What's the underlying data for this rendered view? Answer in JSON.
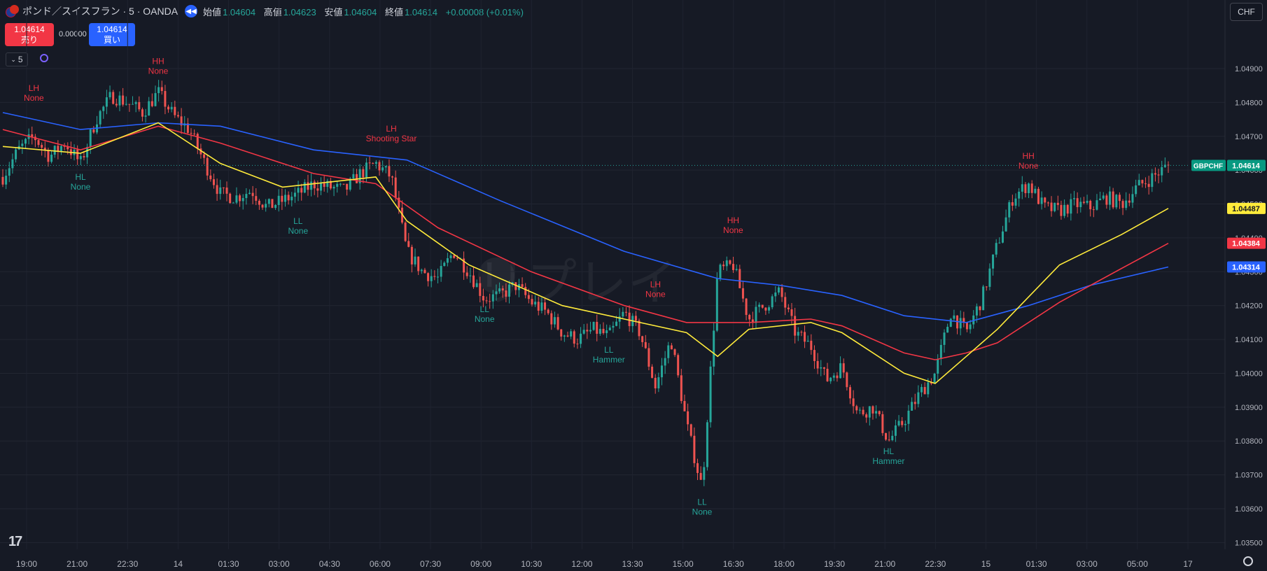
{
  "header": {
    "symbol_title": "ポンド／スイスフラン · 5 · OANDA",
    "open_label": "始値",
    "open": "1.04604",
    "high_label": "高値",
    "high": "1.04623",
    "low_label": "安値",
    "low": "1.04604",
    "close_label": "終値",
    "close": "1.04614",
    "change": "+0.00008 (+0.01%)"
  },
  "trade": {
    "sell_price": "1.04614",
    "sell_label": "売り",
    "spread": "0.00000",
    "buy_price": "1.04614",
    "buy_label": "買い"
  },
  "interval": "5",
  "currency": "CHF",
  "watermark": "リプレイ",
  "icons": [
    "gbp-chf-flag-icon",
    "replay-icon",
    "chevron-down-icon",
    "sync-icon",
    "tradingview-logo",
    "settings-icon"
  ],
  "colors": {
    "up": "#26a69a",
    "down": "#ef5350",
    "ema_yellow": "#ffeb3b",
    "ema_red": "#f23645",
    "ema_blue": "#2962ff",
    "bg": "#161a25"
  },
  "chart_data": {
    "type": "candlestick",
    "symbol_label": "GBPCHF",
    "y_ticks": [
      "1.04900",
      "1.04800",
      "1.04700",
      "1.04600",
      "1.04500",
      "1.04400",
      "1.04300",
      "1.04200",
      "1.04100",
      "1.04000",
      "1.03900",
      "1.03800",
      "1.03700",
      "1.03600",
      "1.03500"
    ],
    "ylim": [
      1.0348,
      1.0502
    ],
    "x_ticks": [
      "19:00",
      "21:00",
      "22:30",
      "14",
      "01:30",
      "03:00",
      "04:30",
      "06:00",
      "07:30",
      "09:00",
      "10:30",
      "12:00",
      "13:30",
      "15:00",
      "16:30",
      "18:00",
      "19:30",
      "21:00",
      "22:30",
      "15",
      "01:30",
      "03:00",
      "05:00",
      "17"
    ],
    "price_series": [
      {
        "t": 0,
        "p": 1.0458
      },
      {
        "t": 1,
        "p": 1.0466
      },
      {
        "t": 2,
        "p": 1.047
      },
      {
        "t": 3,
        "p": 1.0464
      },
      {
        "t": 4,
        "p": 1.0468
      },
      {
        "t": 5,
        "p": 1.0462
      },
      {
        "t": 6,
        "p": 1.0475
      },
      {
        "t": 7,
        "p": 1.0482
      },
      {
        "t": 8,
        "p": 1.048
      },
      {
        "t": 9,
        "p": 1.0477
      },
      {
        "t": 10,
        "p": 1.0483
      },
      {
        "t": 11,
        "p": 1.0476
      },
      {
        "t": 12,
        "p": 1.0472
      },
      {
        "t": 13,
        "p": 1.0462
      },
      {
        "t": 14,
        "p": 1.0453
      },
      {
        "t": 15,
        "p": 1.0452
      },
      {
        "t": 16,
        "p": 1.0454
      },
      {
        "t": 17,
        "p": 1.0449
      },
      {
        "t": 18,
        "p": 1.0451
      },
      {
        "t": 19,
        "p": 1.0453
      },
      {
        "t": 20,
        "p": 1.0456
      },
      {
        "t": 21,
        "p": 1.0455
      },
      {
        "t": 22,
        "p": 1.0454
      },
      {
        "t": 23,
        "p": 1.0459
      },
      {
        "t": 24,
        "p": 1.0462
      },
      {
        "t": 25,
        "p": 1.0458
      },
      {
        "t": 26,
        "p": 1.0436
      },
      {
        "t": 27,
        "p": 1.043
      },
      {
        "t": 28,
        "p": 1.0428
      },
      {
        "t": 29,
        "p": 1.0436
      },
      {
        "t": 30,
        "p": 1.043
      },
      {
        "t": 31,
        "p": 1.0422
      },
      {
        "t": 32,
        "p": 1.0423
      },
      {
        "t": 33,
        "p": 1.0426
      },
      {
        "t": 34,
        "p": 1.0421
      },
      {
        "t": 35,
        "p": 1.0418
      },
      {
        "t": 36,
        "p": 1.0412
      },
      {
        "t": 37,
        "p": 1.041
      },
      {
        "t": 38,
        "p": 1.0413
      },
      {
        "t": 39,
        "p": 1.0411
      },
      {
        "t": 40,
        "p": 1.0418
      },
      {
        "t": 41,
        "p": 1.0412
      },
      {
        "t": 42,
        "p": 1.0396
      },
      {
        "t": 43,
        "p": 1.041
      },
      {
        "t": 44,
        "p": 1.0385
      },
      {
        "t": 45,
        "p": 1.0366
      },
      {
        "t": 46,
        "p": 1.043
      },
      {
        "t": 47,
        "p": 1.0432
      },
      {
        "t": 48,
        "p": 1.0416
      },
      {
        "t": 49,
        "p": 1.042
      },
      {
        "t": 50,
        "p": 1.0424
      },
      {
        "t": 51,
        "p": 1.0412
      },
      {
        "t": 52,
        "p": 1.0408
      },
      {
        "t": 53,
        "p": 1.0398
      },
      {
        "t": 54,
        "p": 1.0402
      },
      {
        "t": 55,
        "p": 1.0388
      },
      {
        "t": 56,
        "p": 1.039
      },
      {
        "t": 57,
        "p": 1.038
      },
      {
        "t": 58,
        "p": 1.0386
      },
      {
        "t": 59,
        "p": 1.0394
      },
      {
        "t": 60,
        "p": 1.04
      },
      {
        "t": 61,
        "p": 1.0418
      },
      {
        "t": 62,
        "p": 1.0412
      },
      {
        "t": 63,
        "p": 1.0422
      },
      {
        "t": 64,
        "p": 1.0438
      },
      {
        "t": 65,
        "p": 1.0452
      },
      {
        "t": 66,
        "p": 1.0456
      },
      {
        "t": 67,
        "p": 1.0449
      },
      {
        "t": 68,
        "p": 1.0448
      },
      {
        "t": 69,
        "p": 1.045
      },
      {
        "t": 70,
        "p": 1.0449
      },
      {
        "t": 71,
        "p": 1.0452
      },
      {
        "t": 72,
        "p": 1.045
      },
      {
        "t": 73,
        "p": 1.0455
      },
      {
        "t": 74,
        "p": 1.0458
      },
      {
        "t": 75,
        "p": 1.04614
      }
    ],
    "ema_yellow": [
      [
        0,
        1.0467
      ],
      [
        5,
        1.0465
      ],
      [
        10,
        1.0474
      ],
      [
        14,
        1.0462
      ],
      [
        18,
        1.0455
      ],
      [
        24,
        1.0458
      ],
      [
        26,
        1.0445
      ],
      [
        30,
        1.0432
      ],
      [
        36,
        1.042
      ],
      [
        40,
        1.0416
      ],
      [
        44,
        1.0412
      ],
      [
        46,
        1.0405
      ],
      [
        48,
        1.0413
      ],
      [
        52,
        1.0415
      ],
      [
        54,
        1.0412
      ],
      [
        58,
        1.04
      ],
      [
        60,
        1.0397
      ],
      [
        62,
        1.0405
      ],
      [
        64,
        1.0413
      ],
      [
        68,
        1.0432
      ],
      [
        72,
        1.0441
      ],
      [
        75,
        1.04487
      ]
    ],
    "ema_red": [
      [
        0,
        1.0472
      ],
      [
        5,
        1.0466
      ],
      [
        10,
        1.0473
      ],
      [
        14,
        1.0468
      ],
      [
        20,
        1.0459
      ],
      [
        24,
        1.0456
      ],
      [
        28,
        1.0443
      ],
      [
        34,
        1.043
      ],
      [
        40,
        1.042
      ],
      [
        44,
        1.0415
      ],
      [
        48,
        1.0415
      ],
      [
        52,
        1.0416
      ],
      [
        54,
        1.0414
      ],
      [
        58,
        1.0406
      ],
      [
        60,
        1.0404
      ],
      [
        62,
        1.0406
      ],
      [
        64,
        1.0409
      ],
      [
        68,
        1.0421
      ],
      [
        72,
        1.0431
      ],
      [
        75,
        1.04384
      ]
    ],
    "ema_blue": [
      [
        0,
        1.0477
      ],
      [
        5,
        1.0472
      ],
      [
        10,
        1.0474
      ],
      [
        14,
        1.0473
      ],
      [
        20,
        1.0466
      ],
      [
        26,
        1.0463
      ],
      [
        32,
        1.0451
      ],
      [
        40,
        1.0436
      ],
      [
        46,
        1.0428
      ],
      [
        50,
        1.0426
      ],
      [
        54,
        1.0423
      ],
      [
        58,
        1.0417
      ],
      [
        62,
        1.0415
      ],
      [
        66,
        1.042
      ],
      [
        70,
        1.0426
      ],
      [
        75,
        1.04314
      ]
    ],
    "last_price": "1.04614",
    "ema_values": {
      "yellow": "1.04487",
      "red": "1.04384",
      "blue": "1.04314"
    },
    "annotations": [
      {
        "t": 2,
        "p": 1.0478,
        "line1": "LH",
        "line2": "None",
        "color": "#f23645",
        "pos": "above"
      },
      {
        "t": 5,
        "p": 1.046,
        "line1": "HL",
        "line2": "None",
        "color": "#26a69a",
        "pos": "below"
      },
      {
        "t": 10,
        "p": 1.0486,
        "line1": "HH",
        "line2": "None",
        "color": "#f23645",
        "pos": "above"
      },
      {
        "t": 19,
        "p": 1.0447,
        "line1": "LL",
        "line2": "None",
        "color": "#26a69a",
        "pos": "below"
      },
      {
        "t": 25,
        "p": 1.0466,
        "line1": "LH",
        "line2": "Shooting Star",
        "color": "#f23645",
        "pos": "above"
      },
      {
        "t": 31,
        "p": 1.0421,
        "line1": "LL",
        "line2": "None",
        "color": "#26a69a",
        "pos": "below"
      },
      {
        "t": 39,
        "p": 1.0409,
        "line1": "LL",
        "line2": "Hammer",
        "color": "#26a69a",
        "pos": "below"
      },
      {
        "t": 42,
        "p": 1.042,
        "line1": "LH",
        "line2": "None",
        "color": "#f23645",
        "pos": "above"
      },
      {
        "t": 45,
        "p": 1.0364,
        "line1": "LL",
        "line2": "None",
        "color": "#26a69a",
        "pos": "below"
      },
      {
        "t": 47,
        "p": 1.0439,
        "line1": "HH",
        "line2": "None",
        "color": "#f23645",
        "pos": "above"
      },
      {
        "t": 57,
        "p": 1.0379,
        "line1": "HL",
        "line2": "Hammer",
        "color": "#26a69a",
        "pos": "below"
      },
      {
        "t": 66,
        "p": 1.0458,
        "line1": "HH",
        "line2": "None",
        "color": "#f23645",
        "pos": "above"
      }
    ]
  }
}
